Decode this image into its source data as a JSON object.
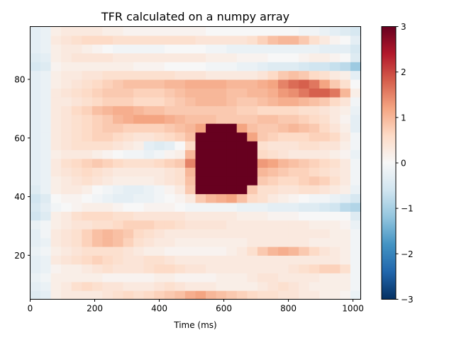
{
  "chart_data": {
    "type": "heatmap",
    "title": "TFR calculated on a numpy array",
    "xlabel": "Time (ms)",
    "ylabel": "",
    "xlim": [
      0,
      1024
    ],
    "ylim": [
      5,
      98
    ],
    "x_ticks": [
      0,
      200,
      400,
      600,
      800,
      1000
    ],
    "y_ticks": [
      20,
      40,
      60,
      80
    ],
    "colorbar": {
      "colormap": "RdBu_r",
      "range": [
        -3,
        3
      ],
      "ticks": [
        3,
        2,
        1,
        0,
        -1,
        -2,
        -3
      ],
      "tick_labels": [
        "3",
        "2",
        "1",
        "0",
        "−1",
        "−2",
        "−3"
      ]
    },
    "x": [
      0,
      32,
      64,
      96,
      128,
      160,
      192,
      224,
      256,
      288,
      320,
      352,
      384,
      416,
      448,
      480,
      512,
      544,
      576,
      608,
      640,
      672,
      704,
      736,
      768,
      800,
      832,
      864,
      896,
      928,
      960,
      992
    ],
    "y": [
      5,
      8,
      11,
      14,
      17,
      20,
      23,
      26,
      29,
      32,
      35,
      38,
      41,
      44,
      47,
      50,
      53,
      56,
      59,
      62,
      65,
      68,
      71,
      74,
      77,
      80,
      83,
      86,
      89,
      92,
      95
    ],
    "values": [
      [
        -0.4,
        -0.3,
        0.2,
        0.3,
        0.3,
        0.3,
        0.3,
        0.4,
        0.5,
        0.6,
        0.5,
        0.6,
        0.7,
        0.8,
        0.9,
        1.1,
        1.2,
        1.0,
        0.9,
        0.8,
        0.7,
        0.6,
        0.5,
        0.5,
        0.4,
        0.4,
        0.3,
        0.3,
        0.2,
        0.2,
        0.1,
        -0.2
      ],
      [
        -0.3,
        -0.2,
        0.2,
        0.3,
        0.5,
        0.6,
        0.5,
        0.4,
        0.4,
        0.3,
        0.3,
        0.3,
        0.4,
        0.5,
        0.4,
        0.3,
        0.3,
        0.3,
        0.2,
        0.2,
        0.2,
        0.2,
        0.3,
        0.4,
        0.5,
        0.4,
        0.3,
        0.2,
        0.2,
        0.2,
        0.2,
        -0.1
      ],
      [
        -0.2,
        -0.1,
        0.2,
        0.2,
        0.2,
        0.2,
        0.2,
        0.1,
        0.1,
        0.1,
        0.1,
        0.1,
        0.2,
        0.2,
        0.1,
        0.1,
        0.1,
        0.1,
        0.2,
        0.2,
        0.2,
        0.3,
        0.4,
        0.4,
        0.3,
        0.3,
        0.3,
        0.3,
        0.2,
        0.2,
        0.2,
        -0.1
      ],
      [
        -0.3,
        -0.2,
        0.1,
        0.2,
        0.2,
        0.3,
        0.4,
        0.5,
        0.4,
        0.4,
        0.4,
        0.5,
        0.6,
        0.6,
        0.5,
        0.4,
        0.4,
        0.3,
        0.3,
        0.3,
        0.3,
        0.3,
        0.3,
        0.3,
        0.3,
        0.4,
        0.5,
        0.6,
        0.7,
        0.7,
        0.5,
        -0.1
      ],
      [
        -0.3,
        -0.2,
        0.3,
        0.4,
        0.5,
        0.6,
        0.7,
        0.6,
        0.5,
        0.4,
        0.4,
        0.5,
        0.5,
        0.4,
        0.3,
        0.3,
        0.3,
        0.3,
        0.3,
        0.3,
        0.3,
        0.3,
        0.3,
        0.3,
        0.3,
        0.3,
        0.3,
        0.3,
        0.3,
        0.3,
        0.2,
        -0.1
      ],
      [
        -0.2,
        -0.1,
        0.2,
        0.3,
        0.4,
        0.5,
        0.5,
        0.5,
        0.5,
        0.4,
        0.3,
        0.2,
        0.2,
        0.1,
        0.1,
        0.1,
        0.1,
        0.1,
        0.1,
        0.2,
        0.3,
        0.5,
        0.8,
        1.0,
        1.1,
        1.0,
        0.8,
        0.6,
        0.4,
        0.3,
        0.2,
        -0.1
      ],
      [
        -0.3,
        -0.2,
        0.3,
        0.4,
        0.5,
        0.7,
        0.9,
        1.0,
        0.9,
        0.7,
        0.5,
        0.4,
        0.3,
        0.3,
        0.2,
        0.2,
        0.2,
        0.2,
        0.2,
        0.2,
        0.2,
        0.3,
        0.3,
        0.3,
        0.3,
        0.3,
        0.3,
        0.2,
        0.2,
        0.2,
        0.2,
        -0.1
      ],
      [
        -0.3,
        -0.1,
        0.3,
        0.4,
        0.5,
        0.7,
        0.9,
        1.0,
        0.9,
        0.8,
        0.6,
        0.5,
        0.4,
        0.3,
        0.3,
        0.3,
        0.3,
        0.3,
        0.3,
        0.3,
        0.3,
        0.3,
        0.3,
        0.3,
        0.3,
        0.3,
        0.3,
        0.3,
        0.3,
        0.2,
        0.2,
        -0.1
      ],
      [
        -0.2,
        -0.1,
        0.2,
        0.3,
        0.4,
        0.4,
        0.5,
        0.5,
        0.6,
        0.7,
        0.7,
        0.7,
        0.6,
        0.6,
        0.5,
        0.4,
        0.4,
        0.4,
        0.4,
        0.3,
        0.3,
        0.3,
        0.3,
        0.3,
        0.3,
        0.3,
        0.3,
        0.2,
        0.2,
        0.2,
        0.1,
        -0.2
      ],
      [
        -0.6,
        -0.4,
        0.2,
        0.3,
        0.5,
        0.6,
        0.6,
        0.6,
        0.5,
        0.5,
        0.4,
        0.4,
        0.4,
        0.4,
        0.4,
        0.3,
        0.3,
        0.3,
        0.3,
        0.3,
        0.2,
        0.2,
        0.2,
        0.1,
        0.1,
        0.1,
        0.0,
        0.0,
        0.0,
        0.0,
        0.0,
        -0.4
      ],
      [
        -0.5,
        -0.3,
        -0.1,
        0.0,
        0.1,
        0.2,
        0.2,
        0.2,
        0.1,
        0.0,
        0.0,
        0.1,
        0.1,
        0.1,
        0.0,
        -0.1,
        -0.1,
        -0.1,
        -0.1,
        -0.1,
        -0.2,
        -0.2,
        -0.2,
        -0.3,
        -0.3,
        -0.3,
        -0.4,
        -0.4,
        -0.5,
        -0.6,
        -0.8,
        -0.9
      ],
      [
        -0.6,
        -0.4,
        0.0,
        0.1,
        0.1,
        0.0,
        -0.1,
        -0.2,
        -0.3,
        -0.3,
        -0.2,
        -0.2,
        -0.1,
        0.0,
        0.1,
        0.3,
        0.8,
        1.0,
        1.1,
        1.2,
        0.9,
        0.6,
        0.5,
        0.3,
        0.2,
        0.1,
        0.0,
        -0.1,
        -0.1,
        -0.2,
        -0.3,
        -0.5
      ],
      [
        -0.4,
        -0.2,
        0.2,
        0.3,
        0.3,
        0.2,
        0.0,
        -0.1,
        -0.2,
        -0.3,
        -0.3,
        -0.2,
        -0.1,
        0.1,
        0.3,
        0.8,
        3.2,
        4.0,
        4.2,
        4.0,
        3.5,
        0.8,
        0.5,
        0.5,
        0.4,
        0.4,
        0.5,
        0.5,
        0.4,
        0.3,
        0.2,
        -0.2
      ],
      [
        -0.3,
        -0.2,
        0.2,
        0.3,
        0.4,
        0.5,
        0.4,
        0.3,
        0.2,
        0.2,
        0.2,
        0.2,
        0.3,
        0.4,
        0.5,
        0.9,
        3.5,
        4.3,
        4.5,
        4.4,
        4.0,
        3.2,
        0.8,
        0.7,
        0.6,
        0.6,
        0.7,
        0.8,
        0.7,
        0.5,
        0.3,
        -0.1
      ],
      [
        -0.3,
        -0.2,
        0.3,
        0.4,
        0.5,
        0.6,
        0.5,
        0.4,
        0.3,
        0.3,
        0.3,
        0.3,
        0.3,
        0.4,
        0.5,
        1.0,
        3.6,
        4.5,
        4.7,
        4.5,
        4.2,
        3.6,
        1.0,
        0.9,
        0.8,
        0.7,
        0.7,
        0.6,
        0.5,
        0.4,
        0.3,
        -0.1
      ],
      [
        -0.3,
        -0.2,
        0.3,
        0.5,
        0.6,
        0.7,
        0.8,
        0.7,
        0.6,
        0.5,
        0.5,
        0.5,
        0.6,
        0.7,
        0.8,
        1.5,
        3.8,
        4.6,
        4.8,
        4.6,
        4.3,
        3.8,
        1.3,
        1.2,
        1.0,
        0.9,
        0.8,
        0.7,
        0.6,
        0.5,
        0.3,
        -0.1
      ],
      [
        -0.3,
        -0.2,
        0.2,
        0.3,
        0.3,
        0.3,
        0.2,
        0.1,
        0.0,
        -0.1,
        -0.1,
        -0.2,
        -0.1,
        0.1,
        0.2,
        1.0,
        3.7,
        4.5,
        4.7,
        4.5,
        4.1,
        3.4,
        0.6,
        0.5,
        0.4,
        0.3,
        0.3,
        0.3,
        0.3,
        0.2,
        0.1,
        -0.2
      ],
      [
        -0.3,
        -0.2,
        0.3,
        0.4,
        0.5,
        0.5,
        0.5,
        0.5,
        0.4,
        0.3,
        0.2,
        -0.3,
        -0.4,
        -0.3,
        0.0,
        0.6,
        3.4,
        4.3,
        4.5,
        4.3,
        3.8,
        3.2,
        0.5,
        0.4,
        0.4,
        0.4,
        0.5,
        0.5,
        0.4,
        0.4,
        0.2,
        -0.1
      ],
      [
        -0.3,
        -0.2,
        0.3,
        0.4,
        0.5,
        0.6,
        0.7,
        0.7,
        0.6,
        0.5,
        0.4,
        0.4,
        0.5,
        0.6,
        0.7,
        0.9,
        3.0,
        3.8,
        4.0,
        3.8,
        3.4,
        1.2,
        0.8,
        0.7,
        0.6,
        0.6,
        0.6,
        0.7,
        0.7,
        0.6,
        0.3,
        -0.1
      ],
      [
        -0.3,
        -0.2,
        0.3,
        0.4,
        0.5,
        0.6,
        0.7,
        0.8,
        0.8,
        0.7,
        0.7,
        0.7,
        0.7,
        0.8,
        0.9,
        1.0,
        1.2,
        3.0,
        3.2,
        3.0,
        1.2,
        0.9,
        0.8,
        0.8,
        0.9,
        1.0,
        0.9,
        0.8,
        0.6,
        0.4,
        0.2,
        -0.3
      ],
      [
        -0.3,
        -0.2,
        0.3,
        0.4,
        0.5,
        0.6,
        0.7,
        0.8,
        1.0,
        1.1,
        1.2,
        1.2,
        1.2,
        1.1,
        1.0,
        0.9,
        0.9,
        0.9,
        0.8,
        0.8,
        0.8,
        0.8,
        0.9,
        0.9,
        0.8,
        0.8,
        0.7,
        0.6,
        0.5,
        0.3,
        0.1,
        -0.3
      ],
      [
        -0.3,
        -0.2,
        0.3,
        0.4,
        0.6,
        0.7,
        0.9,
        1.0,
        1.1,
        1.1,
        1.0,
        0.9,
        0.9,
        0.8,
        0.8,
        0.8,
        0.8,
        0.8,
        0.8,
        0.8,
        0.7,
        0.7,
        0.6,
        0.6,
        0.6,
        0.6,
        0.5,
        0.5,
        0.4,
        0.3,
        0.2,
        -0.2
      ],
      [
        -0.3,
        -0.2,
        0.3,
        0.3,
        0.4,
        0.5,
        0.6,
        0.7,
        0.7,
        0.7,
        0.6,
        0.6,
        0.6,
        0.7,
        0.8,
        0.9,
        1.0,
        1.0,
        1.0,
        0.9,
        0.8,
        0.8,
        0.9,
        1.0,
        1.1,
        1.1,
        1.0,
        0.9,
        0.8,
        0.6,
        0.4,
        -0.1
      ],
      [
        -0.3,
        -0.2,
        0.3,
        0.4,
        0.5,
        0.6,
        0.7,
        0.8,
        0.8,
        0.8,
        0.7,
        0.7,
        0.7,
        0.8,
        0.9,
        1.0,
        1.0,
        1.0,
        1.0,
        0.9,
        0.9,
        1.0,
        1.0,
        1.1,
        1.3,
        1.4,
        1.6,
        1.8,
        1.8,
        1.6,
        1.0,
        0.2
      ],
      [
        -0.3,
        -0.2,
        0.2,
        0.3,
        0.4,
        0.5,
        0.6,
        0.7,
        0.8,
        0.9,
        0.9,
        0.9,
        0.9,
        1.0,
        1.0,
        1.1,
        1.1,
        1.1,
        1.1,
        1.0,
        1.0,
        1.0,
        1.1,
        1.2,
        1.5,
        1.7,
        1.8,
        1.6,
        1.2,
        0.8,
        0.5,
        0.0
      ],
      [
        -0.3,
        -0.2,
        0.2,
        0.3,
        0.3,
        0.4,
        0.4,
        0.5,
        0.5,
        0.5,
        0.5,
        0.5,
        0.5,
        0.5,
        0.4,
        0.4,
        0.4,
        0.3,
        0.3,
        0.3,
        0.3,
        0.3,
        0.4,
        0.6,
        0.8,
        0.9,
        0.8,
        0.6,
        0.5,
        0.3,
        0.2,
        -0.3
      ],
      [
        -0.5,
        -0.4,
        0.1,
        0.2,
        0.2,
        0.2,
        0.2,
        0.2,
        0.2,
        0.2,
        0.1,
        0.1,
        0.1,
        0.0,
        0.0,
        0.0,
        0.0,
        -0.1,
        -0.1,
        -0.1,
        -0.2,
        -0.2,
        -0.3,
        -0.4,
        -0.4,
        -0.4,
        -0.5,
        -0.6,
        -0.6,
        -0.7,
        -0.8,
        -1.1
      ],
      [
        -0.4,
        -0.3,
        0.2,
        0.3,
        0.4,
        0.4,
        0.4,
        0.4,
        0.3,
        0.3,
        0.3,
        0.3,
        0.3,
        0.3,
        0.3,
        0.3,
        0.3,
        0.2,
        0.2,
        0.2,
        0.1,
        0.1,
        0.1,
        0.0,
        0.0,
        0.0,
        0.1,
        0.2,
        0.2,
        0.1,
        0.0,
        -0.4
      ],
      [
        -0.3,
        -0.2,
        0.2,
        0.3,
        0.3,
        0.2,
        0.1,
        0.0,
        -0.1,
        -0.1,
        -0.1,
        -0.1,
        -0.1,
        0.0,
        0.0,
        0.0,
        0.0,
        -0.1,
        -0.1,
        -0.2,
        -0.2,
        -0.2,
        -0.2,
        -0.2,
        -0.2,
        -0.2,
        -0.2,
        -0.2,
        -0.3,
        -0.3,
        -0.3,
        -0.5
      ],
      [
        -0.3,
        -0.2,
        0.3,
        0.4,
        0.5,
        0.6,
        0.6,
        0.6,
        0.5,
        0.5,
        0.5,
        0.5,
        0.5,
        0.5,
        0.5,
        0.5,
        0.4,
        0.4,
        0.4,
        0.4,
        0.4,
        0.5,
        0.7,
        0.9,
        1.0,
        1.0,
        0.8,
        0.5,
        0.3,
        0.1,
        0.0,
        -0.3
      ],
      [
        -0.3,
        -0.2,
        0.2,
        0.3,
        0.3,
        0.3,
        0.3,
        0.2,
        0.2,
        0.1,
        0.1,
        0.1,
        0.1,
        0.1,
        0.1,
        0.1,
        0.1,
        0.0,
        0.0,
        0.0,
        0.0,
        0.0,
        0.0,
        0.0,
        0.0,
        0.0,
        -0.1,
        -0.1,
        -0.2,
        -0.3,
        -0.4,
        -0.5
      ]
    ]
  }
}
